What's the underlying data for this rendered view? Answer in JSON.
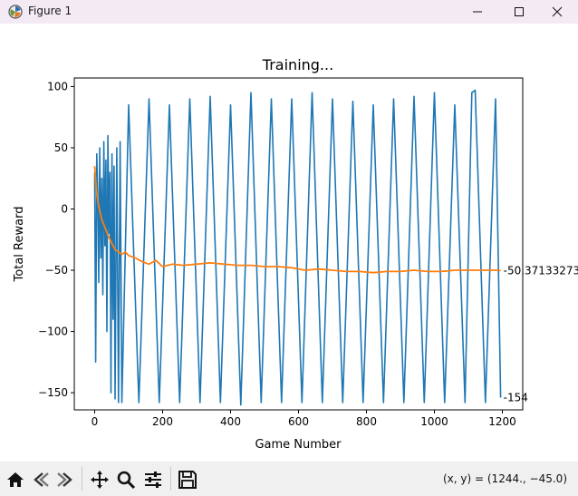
{
  "window": {
    "title": "Figure 1",
    "icon": "matplotlib-figure-icon",
    "controls": [
      "minimize-icon",
      "maximize-icon",
      "close-icon"
    ]
  },
  "toolbar": {
    "buttons": [
      "home-icon",
      "back-icon",
      "forward-icon",
      "pan-icon",
      "zoom-icon",
      "configure-subplots-icon",
      "save-icon"
    ],
    "coords_text": "(x, y) = (1244., −45.0)"
  },
  "chart_data": {
    "type": "line",
    "title": "Training...",
    "xlabel": "Game Number",
    "ylabel": "Total Reward",
    "xlim": [
      -60,
      1260
    ],
    "ylim": [
      -164,
      107
    ],
    "xticks": [
      0,
      200,
      400,
      600,
      800,
      1000,
      1200
    ],
    "xtick_labels": [
      "0",
      "200",
      "400",
      "600",
      "800",
      "1000",
      "1200"
    ],
    "yticks": [
      100,
      50,
      0,
      -50,
      -100,
      -150
    ],
    "ytick_labels": [
      "100",
      "50",
      "0",
      "−50",
      "−100",
      "−150"
    ],
    "grid": false,
    "series": [
      {
        "color": "#1f77b4",
        "x": [
          0,
          3,
          6,
          9,
          12,
          15,
          18,
          21,
          24,
          27,
          30,
          33,
          36,
          39,
          42,
          45,
          48,
          51,
          54,
          57,
          60,
          65,
          70,
          75,
          80,
          100,
          130,
          160,
          190,
          220,
          250,
          280,
          310,
          340,
          370,
          400,
          430,
          460,
          490,
          520,
          550,
          580,
          610,
          640,
          670,
          700,
          730,
          760,
          790,
          820,
          850,
          880,
          910,
          940,
          970,
          1000,
          1030,
          1060,
          1090,
          1110,
          1120,
          1150,
          1180,
          1195
        ],
        "y": [
          30,
          -125,
          45,
          10,
          -60,
          50,
          -40,
          25,
          -70,
          55,
          -30,
          40,
          -100,
          60,
          -20,
          30,
          -150,
          45,
          -90,
          35,
          -155,
          50,
          -158,
          55,
          -158,
          85,
          -158,
          90,
          -158,
          85,
          -158,
          90,
          -158,
          92,
          -158,
          85,
          -160,
          95,
          -158,
          90,
          -158,
          90,
          -158,
          95,
          -158,
          90,
          -158,
          88,
          -158,
          85,
          -158,
          90,
          -158,
          92,
          -158,
          95,
          -158,
          85,
          -158,
          95,
          97,
          -158,
          90,
          -154
        ]
      },
      {
        "color": "#ff7f0e",
        "x": [
          0,
          5,
          10,
          20,
          30,
          40,
          50,
          60,
          70,
          80,
          90,
          100,
          120,
          140,
          160,
          180,
          200,
          230,
          260,
          300,
          340,
          380,
          420,
          460,
          500,
          540,
          580,
          620,
          660,
          700,
          740,
          780,
          820,
          860,
          900,
          940,
          980,
          1020,
          1060,
          1100,
          1140,
          1180,
          1195
        ],
        "y": [
          35,
          15,
          5,
          -8,
          -15,
          -22,
          -28,
          -33,
          -35,
          -37,
          -35,
          -38,
          -40,
          -43,
          -45,
          -42,
          -47,
          -45,
          -46,
          -45,
          -44,
          -45,
          -46,
          -46,
          -47,
          -47,
          -48,
          -50,
          -49,
          -50,
          -51,
          -51,
          -52,
          -51,
          -51,
          -50,
          -51,
          -51,
          -50,
          -50,
          -50,
          -50,
          -50.37
        ]
      }
    ],
    "annotations": [
      {
        "text": "-50.37133273",
        "x": 1195,
        "y": -50.37
      },
      {
        "text": "-154",
        "x": 1195,
        "y": -154
      }
    ]
  }
}
